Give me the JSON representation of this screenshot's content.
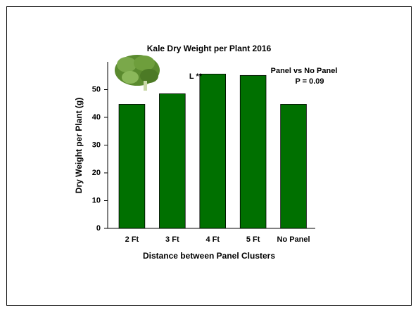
{
  "chart_data": {
    "type": "bar",
    "title": "Kale Dry Weight per Plant 2016",
    "x_label": "Distance between Panel Clusters",
    "y_label": "Dry Weight per Plant (g)",
    "categories": [
      "2 Ft",
      "3 Ft",
      "4 Ft",
      "5 Ft",
      "No Panel"
    ],
    "values": [
      44.7,
      48.5,
      55.6,
      55.1,
      44.7
    ],
    "color": "#007000",
    "ylim": [
      0,
      60
    ],
    "yticks": [
      0,
      10,
      20,
      30,
      40,
      50
    ],
    "annotations": [
      "L **",
      "Panel vs No Panel",
      "P = 0.09"
    ]
  }
}
